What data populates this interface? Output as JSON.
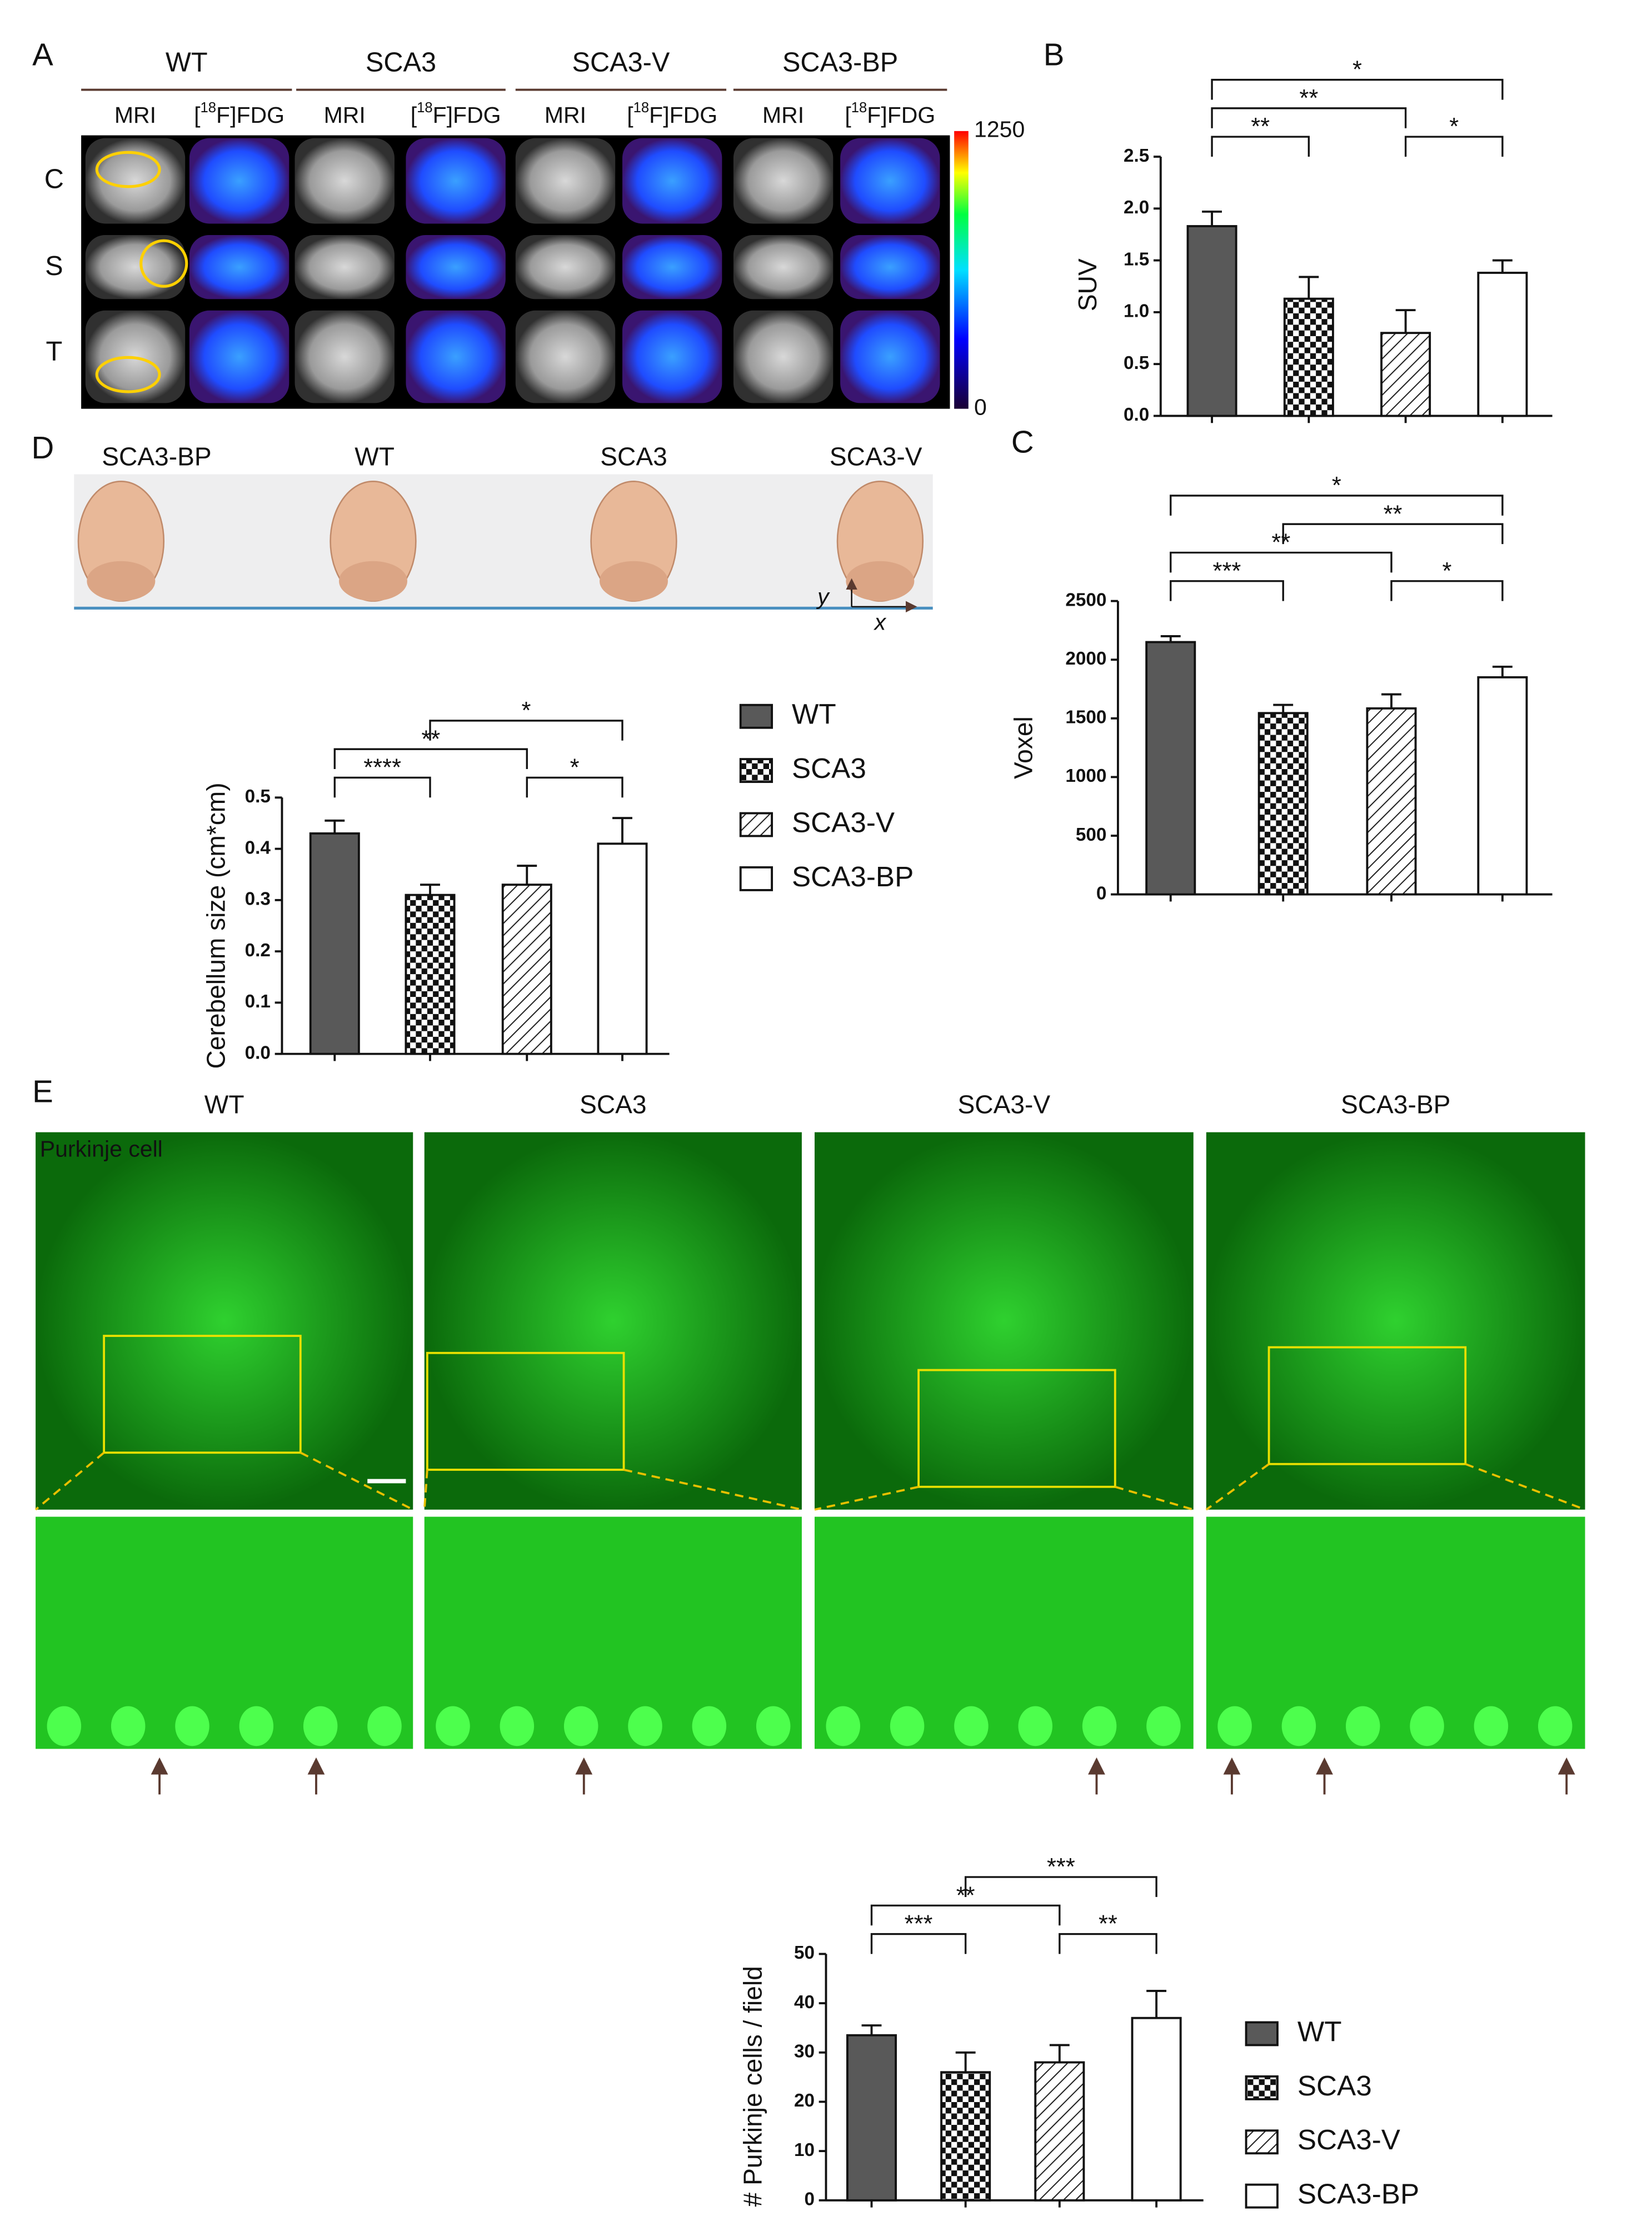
{
  "panel_labels": [
    "A",
    "B",
    "C",
    "D",
    "E"
  ],
  "pet_figure": {
    "groups": [
      "WT",
      "SCA3",
      "SCA3-V",
      "SCA3-BP"
    ],
    "mri": "MRI",
    "fdg": {
      "open": "[",
      "isotope": "18",
      "rest": "F]FDG"
    },
    "rows": [
      "C",
      "S",
      "T"
    ],
    "colorbar_ticks": [
      0,
      1250
    ]
  },
  "brain_photo": {
    "labels": [
      "SCA3-BP",
      "WT",
      "SCA3",
      "SCA3-V"
    ],
    "axes": [
      "y",
      "x"
    ]
  },
  "histology": {
    "groups": [
      "WT",
      "SCA3",
      "SCA3-V",
      "SCA3-BP"
    ],
    "stain": "Purkinje cell"
  },
  "chart_data": [
    {
      "type": "bar",
      "y_label": "SUV",
      "values": [
        1.83,
        1.13,
        0.8,
        1.38
      ],
      "errors": [
        0.14,
        0.21,
        0.22,
        0.12
      ],
      "bar_fills": [
        "#595959",
        "checker",
        "hatch",
        "#ffffff"
      ],
      "ylim": [
        0,
        2.5
      ],
      "yticks": [
        {
          "value": 0,
          "label": "0.0"
        },
        0.5,
        {
          "value": 1,
          "label": "1.0"
        },
        1.5,
        {
          "value": 2,
          "label": "2.0"
        },
        2.5
      ],
      "brackets": [
        {
          "from": 0,
          "to": 1,
          "label": "**"
        },
        {
          "from": 0,
          "to": 2,
          "label": "**"
        },
        {
          "from": 0,
          "to": 3,
          "label": "*"
        },
        {
          "from": 2,
          "to": 3,
          "label": "*"
        }
      ]
    },
    {
      "type": "bar",
      "y_label": "Voxel",
      "values": [
        2150,
        1545,
        1585,
        1850
      ],
      "errors": [
        50,
        70,
        120,
        90
      ],
      "bar_fills": [
        "#595959",
        "checker",
        "hatch",
        "#ffffff"
      ],
      "ylim": [
        0,
        2500
      ],
      "yticks": [
        0,
        500,
        1000,
        1500,
        2000,
        2500
      ],
      "brackets": [
        {
          "from": 0,
          "to": 1,
          "label": "***"
        },
        {
          "from": 0,
          "to": 2,
          "label": "**"
        },
        {
          "from": 0,
          "to": 3,
          "label": "*"
        },
        {
          "from": 1,
          "to": 3,
          "label": "**"
        },
        {
          "from": 2,
          "to": 3,
          "label": "*"
        }
      ]
    },
    {
      "type": "bar",
      "y_label": "Cerebellum size (cm*cm)",
      "values": [
        0.43,
        0.31,
        0.33,
        0.41
      ],
      "errors": [
        0.025,
        0.02,
        0.037,
        0.05
      ],
      "bar_fills": [
        "#595959",
        "checker",
        "hatch",
        "#ffffff"
      ],
      "ylim": [
        0,
        0.5
      ],
      "yticks": [
        {
          "value": 0,
          "label": "0.0"
        },
        0.1,
        0.2,
        0.3,
        0.4,
        0.5
      ],
      "legend": [
        "WT",
        "SCA3",
        "SCA3-V",
        "SCA3-BP"
      ],
      "brackets": [
        {
          "from": 0,
          "to": 1,
          "label": "****"
        },
        {
          "from": 0,
          "to": 2,
          "label": "**"
        },
        {
          "from": 1,
          "to": 3,
          "label": "*"
        },
        {
          "from": 2,
          "to": 3,
          "label": "*"
        }
      ]
    },
    {
      "type": "bar",
      "y_label": "# Purkinje cells / field",
      "values": [
        33.5,
        26,
        28,
        37
      ],
      "errors": [
        2,
        4,
        3.5,
        5.5
      ],
      "bar_fills": [
        "#595959",
        "checker",
        "hatch",
        "#ffffff"
      ],
      "ylim": [
        0,
        50
      ],
      "yticks": [
        0,
        10,
        20,
        30,
        40,
        50
      ],
      "legend": [
        "WT",
        "SCA3",
        "SCA3-V",
        "SCA3-BP"
      ],
      "brackets": [
        {
          "from": 0,
          "to": 1,
          "label": "***"
        },
        {
          "from": 0,
          "to": 2,
          "label": "**"
        },
        {
          "from": 1,
          "to": 3,
          "label": "***"
        },
        {
          "from": 2,
          "to": 3,
          "label": "**"
        }
      ]
    }
  ]
}
